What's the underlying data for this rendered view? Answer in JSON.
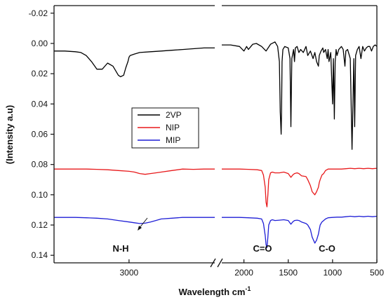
{
  "chart_data": {
    "type": "line",
    "xlabel": "Wavelength cm",
    "xlabel_sup": "-1",
    "ylabel": "(Intensity a.u)",
    "y_inverted": true,
    "ylim": [
      -0.025,
      0.145
    ],
    "x_broken_axis": true,
    "x_segments": [
      {
        "xlim": [
          3700,
          2200
        ],
        "ticks": [
          3000
        ]
      },
      {
        "xlim": [
          2250,
          500
        ],
        "ticks": [
          2000,
          1500,
          1000,
          500
        ]
      }
    ],
    "yticks": [
      -0.02,
      0.0,
      0.02,
      0.04,
      0.06,
      0.08,
      0.1,
      0.12,
      0.14
    ],
    "ytick_labels": [
      "-0.02",
      "0.00",
      "0.02",
      "0.04",
      "0.06",
      "0.08",
      "0.10",
      "0.12",
      "0.14"
    ],
    "xtick_labels": [
      "3000",
      "2000",
      "1500",
      "1000",
      "500"
    ],
    "legend": {
      "placement": "center-left",
      "entries": [
        "2VP",
        "NIP",
        "MIP"
      ]
    },
    "colors": {
      "2VP": "#000000",
      "NIP": "#e8191b",
      "MIP": "#1f1fd6",
      "axis": "#111111"
    },
    "annotations": [
      {
        "text": "N-H",
        "x": 2850,
        "y": 0.138
      },
      {
        "text": "C=O",
        "x": 1800,
        "y": 0.138
      },
      {
        "text": "C-O",
        "x": 1080,
        "y": 0.138
      }
    ],
    "series": [
      {
        "name": "2VP",
        "x": [
          3700,
          3600,
          3500,
          3450,
          3400,
          3350,
          3300,
          3250,
          3200,
          3150,
          3100,
          3080,
          3050,
          3030,
          3010,
          3000,
          2990,
          2950,
          2900,
          2800,
          2700,
          2600,
          2500,
          2400,
          2300,
          2200,
          2250,
          2150,
          2050,
          2000,
          1970,
          1950,
          1900,
          1860,
          1800,
          1750,
          1700,
          1650,
          1620,
          1600,
          1590,
          1580,
          1575,
          1570,
          1560,
          1540,
          1500,
          1480,
          1470,
          1460,
          1440,
          1430,
          1420,
          1400,
          1380,
          1360,
          1330,
          1300,
          1280,
          1250,
          1220,
          1200,
          1180,
          1160,
          1150,
          1130,
          1110,
          1100,
          1080,
          1060,
          1050,
          1040,
          1020,
          1000,
          990,
          980,
          970,
          960,
          950,
          930,
          900,
          880,
          860,
          850,
          830,
          800,
          780,
          760,
          750,
          740,
          720,
          700,
          680,
          660,
          640,
          620,
          600,
          580,
          560,
          540,
          520,
          500
        ],
        "y": [
          0.005,
          0.005,
          0.0055,
          0.006,
          0.008,
          0.012,
          0.017,
          0.017,
          0.013,
          0.015,
          0.021,
          0.022,
          0.021,
          0.016,
          0.012,
          0.009,
          0.008,
          0.007,
          0.006,
          0.0055,
          0.005,
          0.0045,
          0.004,
          0.0035,
          0.003,
          0.003,
          0.001,
          0.001,
          0.002,
          0.005,
          0.002,
          0.004,
          0.0005,
          0.0,
          0.002,
          0.005,
          0.0005,
          -0.001,
          0.002,
          0.012,
          0.045,
          0.06,
          0.045,
          0.012,
          0.004,
          0.002,
          0.003,
          0.01,
          0.055,
          0.01,
          0.004,
          0.012,
          0.003,
          0.002,
          0.006,
          0.004,
          0.006,
          0.002,
          0.008,
          0.005,
          0.01,
          0.006,
          0.012,
          0.015,
          0.008,
          0.005,
          0.003,
          0.006,
          0.004,
          0.01,
          0.004,
          0.012,
          0.006,
          0.04,
          0.01,
          0.05,
          0.012,
          0.004,
          0.008,
          0.004,
          0.002,
          0.004,
          0.015,
          0.005,
          0.004,
          0.01,
          0.07,
          0.01,
          0.055,
          0.008,
          0.004,
          0.002,
          0.01,
          0.002,
          0.005,
          0.003,
          0.002,
          0.002,
          0.005,
          0.002,
          0.001,
          0.002
        ]
      },
      {
        "name": "NIP",
        "x": [
          3700,
          3600,
          3500,
          3400,
          3300,
          3200,
          3100,
          3000,
          2950,
          2900,
          2850,
          2800,
          2750,
          2700,
          2600,
          2500,
          2400,
          2300,
          2200,
          2250,
          2150,
          2050,
          1950,
          1850,
          1800,
          1780,
          1760,
          1750,
          1740,
          1730,
          1720,
          1700,
          1680,
          1650,
          1600,
          1550,
          1500,
          1470,
          1450,
          1430,
          1400,
          1380,
          1350,
          1300,
          1280,
          1250,
          1230,
          1200,
          1180,
          1160,
          1150,
          1140,
          1120,
          1100,
          1080,
          1050,
          1000,
          950,
          900,
          850,
          800,
          750,
          700,
          650,
          600,
          550,
          500
        ],
        "y": [
          0.083,
          0.083,
          0.083,
          0.083,
          0.0832,
          0.0835,
          0.084,
          0.0845,
          0.085,
          0.086,
          0.0865,
          0.086,
          0.0855,
          0.085,
          0.084,
          0.083,
          0.0832,
          0.083,
          0.083,
          0.083,
          0.083,
          0.083,
          0.0832,
          0.0835,
          0.084,
          0.087,
          0.095,
          0.105,
          0.108,
          0.1,
          0.09,
          0.0855,
          0.085,
          0.0855,
          0.0855,
          0.085,
          0.086,
          0.0885,
          0.087,
          0.086,
          0.0855,
          0.086,
          0.0875,
          0.088,
          0.09,
          0.094,
          0.098,
          0.1,
          0.098,
          0.095,
          0.092,
          0.09,
          0.087,
          0.086,
          0.084,
          0.083,
          0.083,
          0.083,
          0.083,
          0.0828,
          0.0825,
          0.0828,
          0.0825,
          0.0828,
          0.0825,
          0.0828,
          0.0825
        ]
      },
      {
        "name": "MIP",
        "x": [
          3700,
          3600,
          3500,
          3400,
          3300,
          3200,
          3100,
          3000,
          2950,
          2900,
          2850,
          2800,
          2750,
          2700,
          2600,
          2500,
          2400,
          2300,
          2200,
          2250,
          2150,
          2050,
          1950,
          1850,
          1800,
          1780,
          1760,
          1750,
          1740,
          1730,
          1720,
          1700,
          1680,
          1650,
          1600,
          1550,
          1500,
          1470,
          1450,
          1430,
          1400,
          1380,
          1350,
          1300,
          1280,
          1250,
          1230,
          1200,
          1180,
          1160,
          1150,
          1140,
          1120,
          1100,
          1080,
          1050,
          1000,
          950,
          900,
          850,
          800,
          750,
          700,
          650,
          600,
          550,
          500
        ],
        "y": [
          0.115,
          0.115,
          0.115,
          0.1152,
          0.1155,
          0.116,
          0.117,
          0.118,
          0.1185,
          0.119,
          0.1188,
          0.118,
          0.117,
          0.116,
          0.1155,
          0.115,
          0.115,
          0.115,
          0.115,
          0.115,
          0.115,
          0.115,
          0.1152,
          0.1155,
          0.116,
          0.119,
          0.127,
          0.133,
          0.135,
          0.128,
          0.12,
          0.117,
          0.1165,
          0.117,
          0.1168,
          0.1165,
          0.117,
          0.1195,
          0.118,
          0.117,
          0.1168,
          0.117,
          0.118,
          0.119,
          0.12,
          0.123,
          0.128,
          0.132,
          0.13,
          0.126,
          0.123,
          0.12,
          0.118,
          0.117,
          0.116,
          0.1152,
          0.115,
          0.1148,
          0.1148,
          0.1145,
          0.1142,
          0.1145,
          0.1142,
          0.1145,
          0.1142,
          0.1145,
          0.1142
        ]
      }
    ]
  }
}
